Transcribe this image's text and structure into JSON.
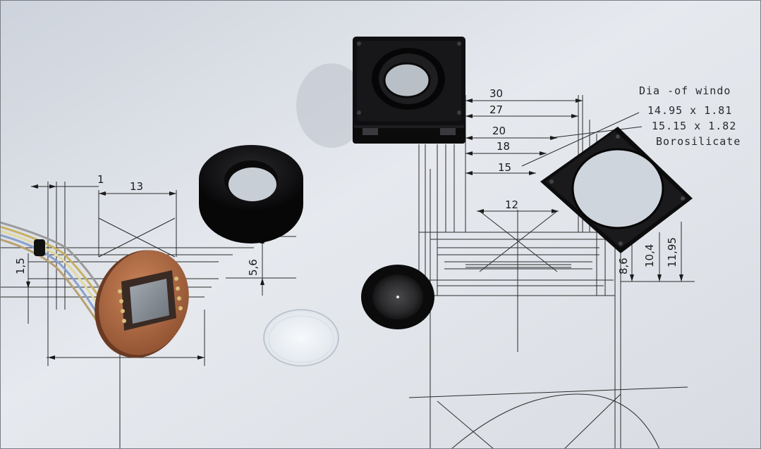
{
  "photo": {
    "subject": "",
    "background": "technical drawing on paper"
  },
  "drawing_annotations": {
    "window_note": {
      "line1": "Dia -of windo",
      "line2": "14.95 x 1.81",
      "line3": "15.15 x 1.82",
      "line4": "Borosilicate"
    },
    "dimensions_right": {
      "d30": "30",
      "d27": "27",
      "d20": "20",
      "d18": "18",
      "d15": "15",
      "d12": "12",
      "d8": "8,6",
      "d10": "10,4",
      "d11": "11,95"
    },
    "dimensions_left": {
      "d1": "1",
      "d13": "13",
      "d15v": "1,5",
      "d56": "5,6"
    }
  },
  "colors": {
    "paper": "#e4e8ee",
    "line": "#2b2b2b",
    "anodized_black": "#0d0d0f",
    "pcb": "#b06a45",
    "sensor": "#8a9098",
    "glass": "#eef2f6"
  }
}
